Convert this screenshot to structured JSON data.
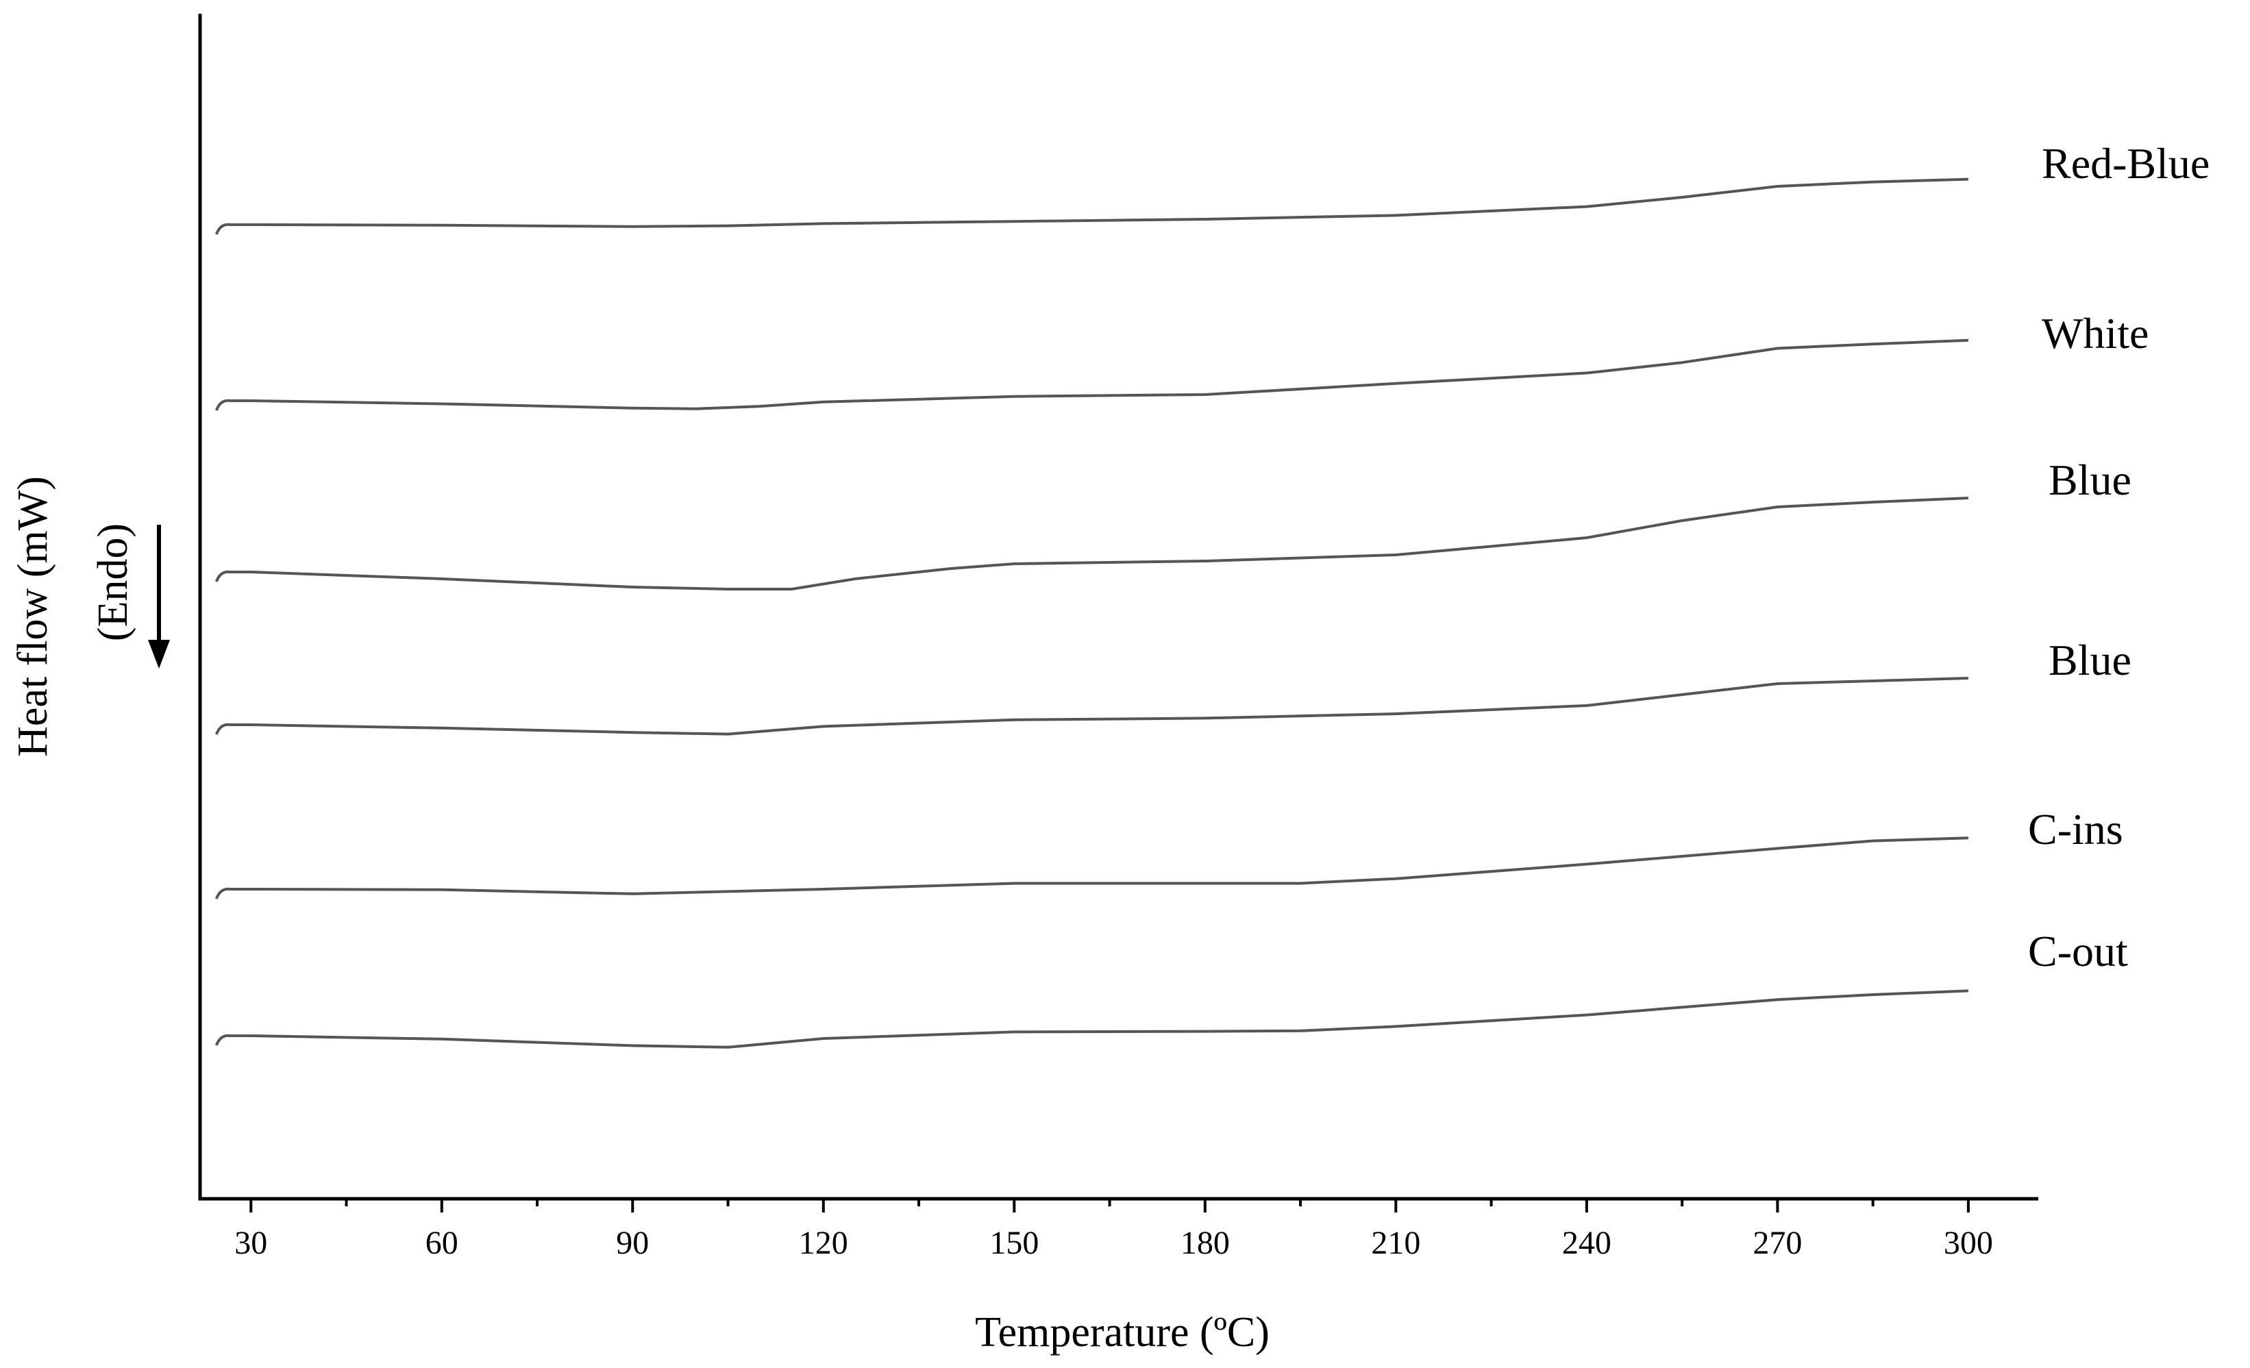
{
  "chart_data": {
    "type": "line",
    "xlabel": "Temperature (ºC)",
    "ylabel": "Heat flow (mW)",
    "ylabel_sub": "(Endo)",
    "xlim": [
      22,
      311
    ],
    "x_ticks": [
      30,
      60,
      90,
      120,
      150,
      180,
      210,
      240,
      270,
      300
    ],
    "x_tick_labels": [
      "30",
      "60",
      "90",
      "120",
      "150",
      "180",
      "210",
      "240",
      "270",
      "300"
    ],
    "y_ticks_shown": false,
    "grid": false,
    "legend": "labels at right end of each curve",
    "colors": {
      "line": "#555555",
      "axis": "#000000"
    },
    "series": [
      {
        "name": "Red-Blue",
        "x": [
          25,
          30,
          60,
          90,
          105,
          120,
          150,
          180,
          210,
          240,
          255,
          270,
          285,
          300
        ],
        "y": [
          0.0,
          0.0,
          -0.01,
          -0.035,
          -0.02,
          0.02,
          0.06,
          0.1,
          0.17,
          0.33,
          0.5,
          0.7,
          0.78,
          0.83
        ]
      },
      {
        "name": "White",
        "x": [
          25,
          30,
          60,
          90,
          100,
          110,
          120,
          150,
          180,
          210,
          240,
          255,
          270,
          285,
          300
        ],
        "y": [
          0.0,
          0.0,
          -0.05,
          -0.12,
          -0.13,
          -0.09,
          -0.02,
          0.07,
          0.1,
          0.28,
          0.45,
          0.62,
          0.85,
          0.92,
          0.98
        ]
      },
      {
        "name": "Blue",
        "x": [
          25,
          30,
          60,
          90,
          105,
          115,
          125,
          140,
          150,
          180,
          210,
          240,
          255,
          270,
          285,
          300
        ],
        "y": [
          0.0,
          0.0,
          -0.1,
          -0.22,
          -0.25,
          -0.25,
          -0.1,
          0.05,
          0.12,
          0.16,
          0.25,
          0.5,
          0.75,
          0.95,
          1.02,
          1.08
        ]
      },
      {
        "name": "Blue",
        "x": [
          25,
          30,
          60,
          90,
          105,
          120,
          150,
          180,
          210,
          240,
          255,
          270,
          285,
          300
        ],
        "y": [
          0.0,
          0.0,
          -0.06,
          -0.14,
          -0.17,
          -0.03,
          0.09,
          0.12,
          0.2,
          0.35,
          0.55,
          0.75,
          0.8,
          0.85
        ]
      },
      {
        "name": "C-ins",
        "x": [
          25,
          30,
          60,
          90,
          120,
          150,
          180,
          195,
          210,
          240,
          270,
          285,
          300
        ],
        "y": [
          0.0,
          0.0,
          -0.01,
          -0.08,
          0.0,
          0.1,
          0.1,
          0.1,
          0.18,
          0.43,
          0.7,
          0.83,
          0.88
        ]
      },
      {
        "name": "C-out",
        "x": [
          25,
          30,
          60,
          90,
          105,
          120,
          150,
          180,
          195,
          210,
          240,
          270,
          285,
          300
        ],
        "y": [
          0.0,
          0.0,
          -0.06,
          -0.18,
          -0.21,
          -0.05,
          0.07,
          0.08,
          0.09,
          0.17,
          0.38,
          0.66,
          0.75,
          0.82
        ]
      }
    ]
  }
}
